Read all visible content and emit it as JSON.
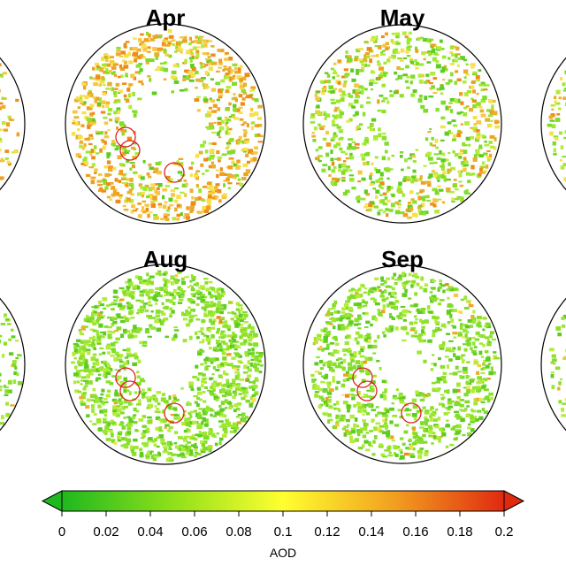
{
  "panels": [
    {
      "title": "Apr"
    },
    {
      "title": "May"
    },
    {
      "title": "Aug"
    },
    {
      "title": "Sep"
    }
  ],
  "colorbar": {
    "label": "AOD",
    "range": [
      0,
      0.2
    ],
    "ticks": [
      0,
      0.02,
      0.04,
      0.06,
      0.08,
      0.1,
      0.12,
      0.14,
      0.16,
      0.18,
      0.2
    ]
  }
}
